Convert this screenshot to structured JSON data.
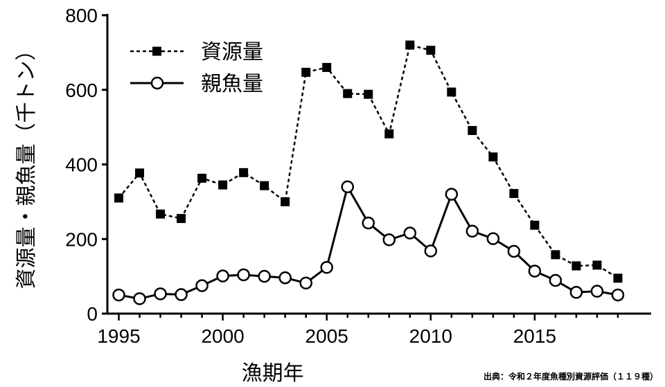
{
  "chart_data": {
    "type": "line",
    "xlabel": "漁期年",
    "ylabel": "資源量・親魚量（千トン）",
    "source_note": "出典：令和２年度魚種別資源評価（１１９種）",
    "xlim": [
      1995,
      2019
    ],
    "ylim": [
      0,
      800
    ],
    "x_ticks": [
      "1995",
      "2000",
      "2005",
      "2010",
      "2015"
    ],
    "y_ticks": [
      "0",
      "200",
      "400",
      "600",
      "800"
    ],
    "grid": false,
    "legend_position": "top-left",
    "x": [
      1995,
      1996,
      1997,
      1998,
      1999,
      2000,
      2001,
      2002,
      2003,
      2004,
      2005,
      2006,
      2007,
      2008,
      2009,
      2010,
      2011,
      2012,
      2013,
      2014,
      2015,
      2016,
      2017,
      2018,
      2019
    ],
    "series": [
      {
        "name": "資源量",
        "style": "dashed-square",
        "values": [
          310,
          377,
          267,
          255,
          363,
          345,
          378,
          343,
          300,
          647,
          660,
          590,
          588,
          482,
          720,
          706,
          594,
          491,
          420,
          322,
          237,
          158,
          128,
          130,
          95
        ]
      },
      {
        "name": "親魚量",
        "style": "solid-circle",
        "values": [
          50,
          40,
          53,
          51,
          75,
          101,
          104,
          100,
          96,
          82,
          124,
          340,
          243,
          198,
          216,
          168,
          320,
          221,
          201,
          167,
          114,
          89,
          57,
          60,
          50
        ]
      }
    ]
  }
}
